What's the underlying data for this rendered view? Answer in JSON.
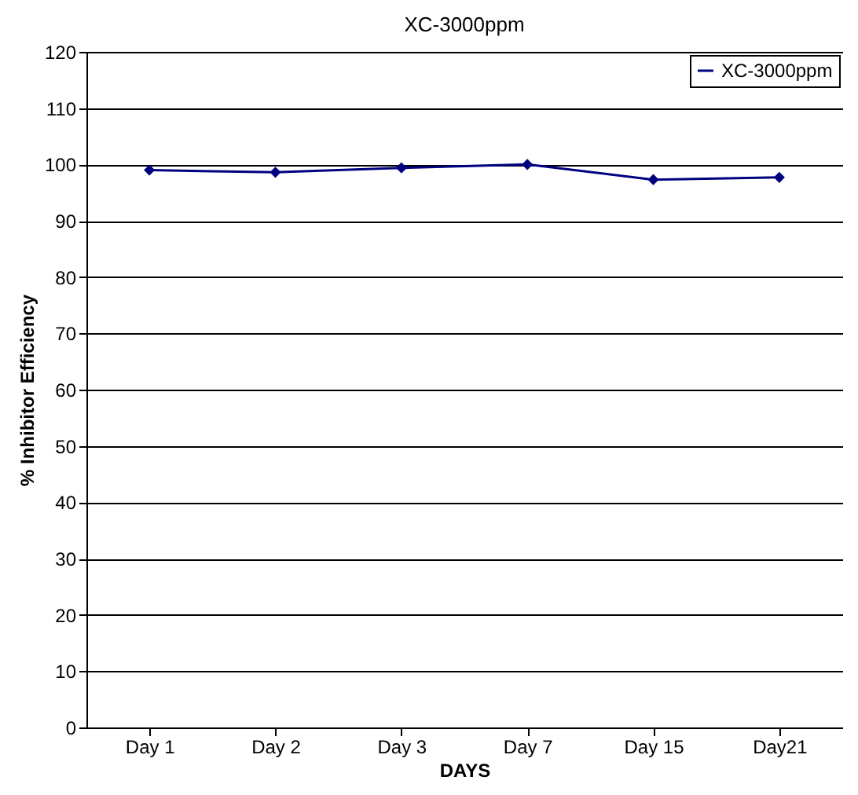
{
  "chart_data": {
    "type": "line",
    "title": "XC-3000ppm",
    "xlabel": "DAYS",
    "ylabel": "% Inhibitor Efficiency",
    "categories": [
      "Day 1",
      "Day 2",
      "Day 3",
      "Day 7",
      "Day 15",
      "Day21"
    ],
    "series": [
      {
        "name": "XC-3000ppm",
        "color": "#000080",
        "values": [
          99.0,
          98.6,
          99.4,
          100.0,
          97.3,
          97.7
        ]
      }
    ],
    "ylim": [
      0,
      120
    ],
    "yticks": [
      0,
      10,
      20,
      30,
      40,
      50,
      60,
      70,
      80,
      90,
      100,
      110,
      120
    ],
    "grid": "y",
    "legend": "top right",
    "marker": "diamond"
  }
}
